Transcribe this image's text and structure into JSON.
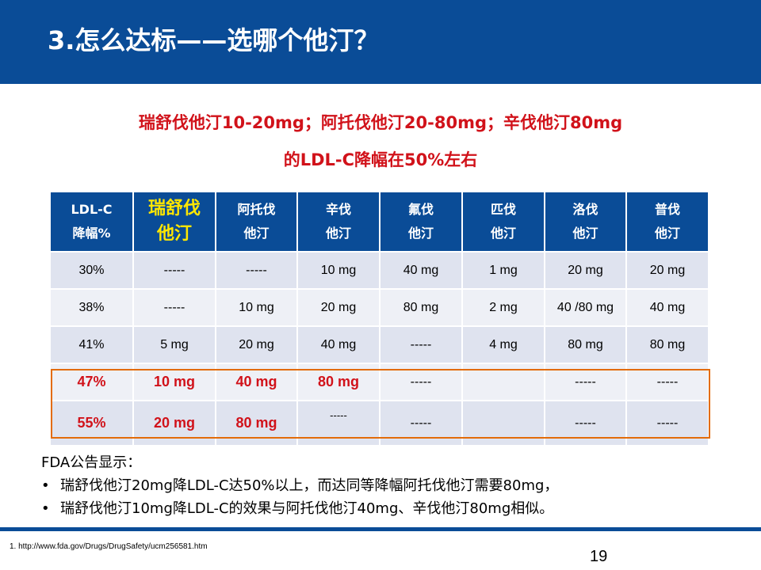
{
  "slide": {
    "title": "3.怎么达标——选哪个他汀？",
    "subtitle_line1": "瑞舒伐他汀10-20mg；阿托伐他汀20-80mg；辛伐他汀80mg",
    "subtitle_line2": "的LDL-C降幅在50%左右"
  },
  "table": {
    "headers": [
      {
        "line1": "LDL-C",
        "line2": "降幅%"
      },
      {
        "line1": "瑞舒伐",
        "line2": "他汀"
      },
      {
        "line1": "阿托伐",
        "line2": "他汀"
      },
      {
        "line1": "辛伐",
        "line2": "他汀"
      },
      {
        "line1": "氟伐",
        "line2": "他汀"
      },
      {
        "line1": "匹伐",
        "line2": "他汀"
      },
      {
        "line1": "洛伐",
        "line2": "他汀"
      },
      {
        "line1": "普伐",
        "line2": "他汀"
      }
    ],
    "rows": [
      [
        "30%",
        "-----",
        "-----",
        "10 mg",
        "40 mg",
        "1 mg",
        "20 mg",
        "20 mg"
      ],
      [
        "38%",
        "-----",
        "10 mg",
        "20 mg",
        "80 mg",
        "2 mg",
        "40 /80 mg",
        "40 mg"
      ],
      [
        "41%",
        "5 mg",
        "20 mg",
        "40 mg",
        "-----",
        "4 mg",
        "80 mg",
        "80 mg"
      ],
      [
        "47%",
        "10 mg",
        "40 mg",
        "80 mg",
        "-----",
        "",
        "-----",
        "-----"
      ],
      [
        "55%",
        "20 mg",
        "80 mg",
        "-----",
        "-----",
        "",
        "-----",
        "-----"
      ]
    ]
  },
  "fda": {
    "title": "FDA公告显示：",
    "bullet_symbol": "•",
    "bullets": [
      "瑞舒伐他汀20mg降LDL-C达50%以上，而达同等降幅阿托伐他汀需要80mg，",
      "瑞舒伐他汀10mg降LDL-C的效果与阿托伐他汀40mg、辛伐他汀80mg相似。"
    ]
  },
  "footer": {
    "reference": "1. http://www.fda.gov/Drugs/DrugSafety/ucm256581.htm",
    "page_number": "19"
  },
  "colors": {
    "header_blue": "#0a4c97",
    "accent_red": "#d1121a",
    "highlight_yellow": "#ffe600",
    "box_orange": "#e36c09"
  }
}
